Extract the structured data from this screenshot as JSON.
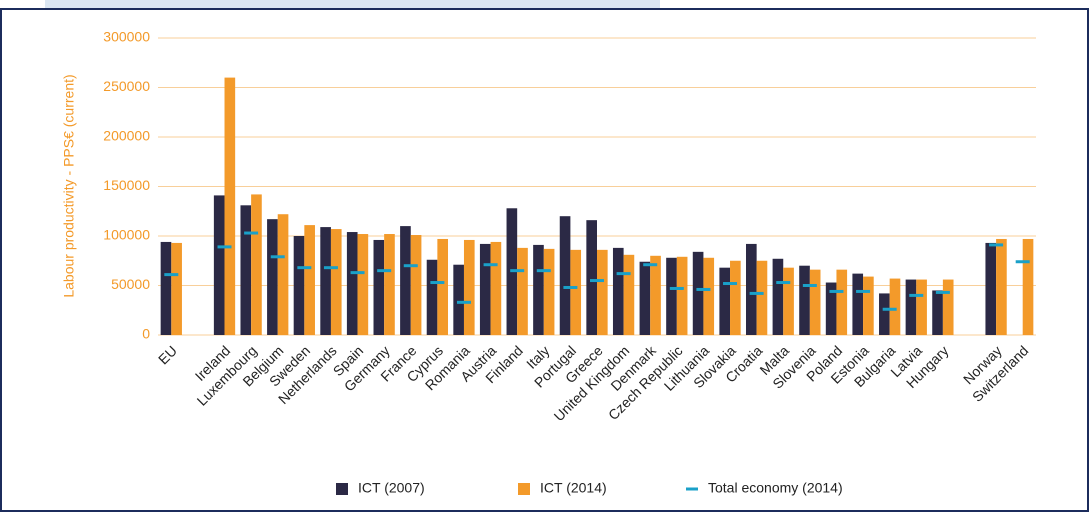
{
  "chart_data": {
    "type": "bar",
    "ylabel": "Labour productivity - PPS€ (current)",
    "categories": [
      "EU",
      null,
      "Ireland",
      "Luxembourg",
      "Belgium",
      "Sweden",
      "Netherlands",
      "Spain",
      "Germany",
      "France",
      "Cyprus",
      "Romania",
      "Austria",
      "Finland",
      "Italy",
      "Portugal",
      "Greece",
      "United Kingdom",
      "Denmark",
      "Czech Republic",
      "Lithuania",
      "Slovakia",
      "Croatia",
      "Malta",
      "Slovenia",
      "Poland",
      "Estonia",
      "Bulgaria",
      "Latvia",
      "Hungary",
      null,
      "Norway",
      "Switzerland"
    ],
    "series": [
      {
        "name": "ICT (2007)",
        "color": "#2b2945",
        "mark": "bar",
        "values": [
          94000,
          null,
          141000,
          131000,
          117000,
          100000,
          109000,
          104000,
          96000,
          110000,
          76000,
          71000,
          92000,
          128000,
          91000,
          120000,
          116000,
          88000,
          74000,
          78000,
          84000,
          68000,
          92000,
          77000,
          70000,
          53000,
          62000,
          42000,
          56000,
          45000,
          null,
          93000,
          null
        ]
      },
      {
        "name": "ICT (2014)",
        "color": "#f39a2a",
        "mark": "bar",
        "values": [
          93000,
          null,
          260000,
          142000,
          122000,
          111000,
          107000,
          102000,
          102000,
          101000,
          97000,
          96000,
          94000,
          88000,
          87000,
          86000,
          86000,
          81000,
          80000,
          79000,
          78000,
          75000,
          75000,
          68000,
          66000,
          66000,
          59000,
          57000,
          56000,
          56000,
          null,
          97000,
          97000
        ]
      },
      {
        "name": "Total economy (2014)",
        "color": "#1aa0c8",
        "mark": "dash",
        "values": [
          61000,
          null,
          89000,
          103000,
          79000,
          68000,
          68000,
          63000,
          65000,
          70000,
          53000,
          33000,
          71000,
          65000,
          65000,
          48000,
          55000,
          62000,
          71000,
          47000,
          46000,
          52000,
          42000,
          53000,
          50000,
          44000,
          44000,
          26000,
          40000,
          43000,
          null,
          91000,
          74000
        ]
      }
    ],
    "ylim": [
      0,
      300000
    ],
    "yticks": [
      0,
      50000,
      100000,
      150000,
      200000,
      250000,
      300000
    ],
    "grid": true
  }
}
